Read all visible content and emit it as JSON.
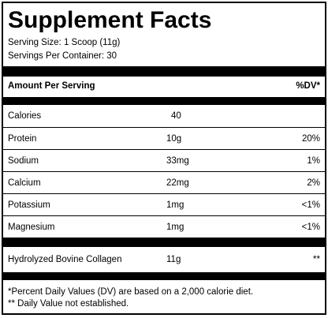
{
  "title": "Supplement Facts",
  "serving_size": "Serving Size: 1 Scoop (11g)",
  "servings_per_container": "Servings Per Container: 30",
  "header": {
    "amount": "Amount Per Serving",
    "dv": "%DV*"
  },
  "nutrients": [
    {
      "name": "Calories",
      "amount": "40",
      "dv": ""
    },
    {
      "name": "Protein",
      "amount": "10g",
      "dv": "20%"
    },
    {
      "name": "Sodium",
      "amount": "33mg",
      "dv": "1%"
    },
    {
      "name": "Calcium",
      "amount": "22mg",
      "dv": "2%"
    },
    {
      "name": "Potassium",
      "amount": "1mg",
      "dv": "<1%"
    },
    {
      "name": "Magnesium",
      "amount": "1mg",
      "dv": "<1%"
    }
  ],
  "ingredient": {
    "name": "Hydrolyzed Bovine Collagen",
    "amount": "11g",
    "dv": "**"
  },
  "footnotes": [
    "*Percent Daily Values (DV) are based on a 2,000 calorie diet.",
    "** Daily Value not established."
  ]
}
